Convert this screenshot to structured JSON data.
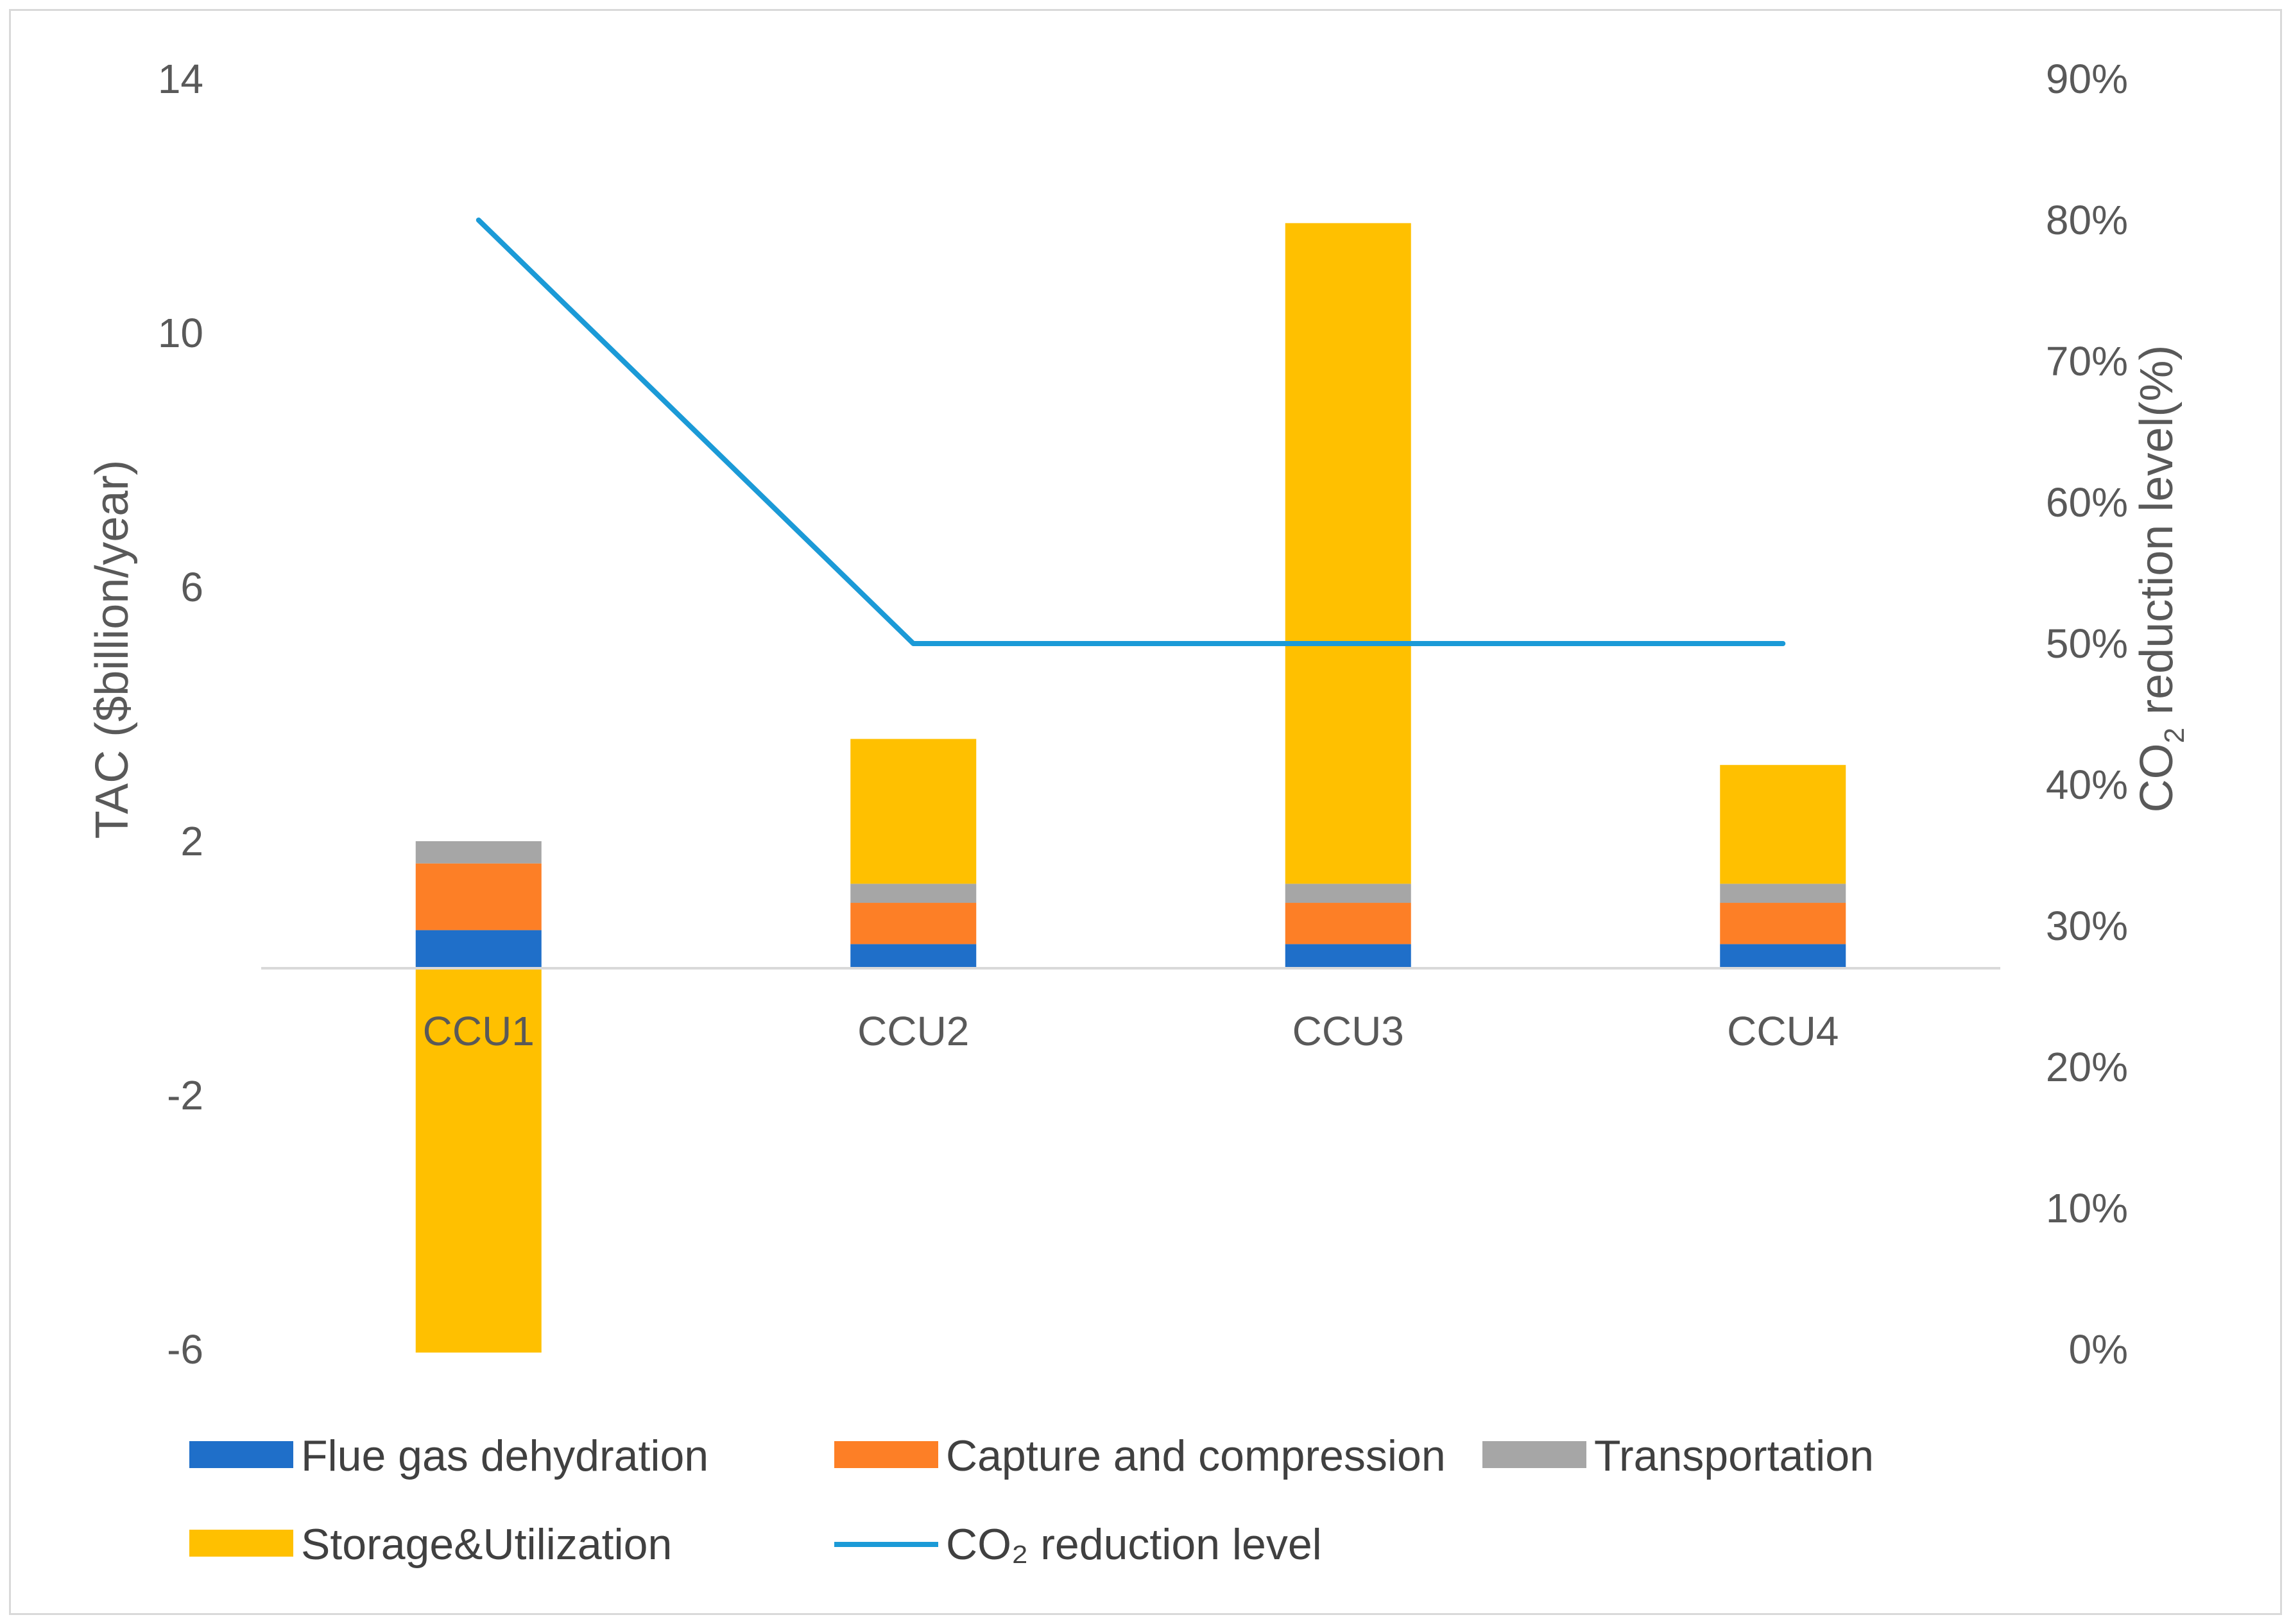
{
  "chart_data": {
    "type": "bar",
    "stacked": true,
    "categories": [
      "CCU1",
      "CCU2",
      "CCU3",
      "CCU4"
    ],
    "series": [
      {
        "name": "Flue gas dehydration",
        "kind": "bar",
        "color": "#1f6fc9",
        "values": [
          0.6,
          0.38,
          0.38,
          0.38
        ]
      },
      {
        "name": "Capture and compression",
        "kind": "bar",
        "color": "#fd7f26",
        "values": [
          1.05,
          0.65,
          0.65,
          0.65
        ]
      },
      {
        "name": "Transportation",
        "kind": "bar",
        "color": "#a6a6a6",
        "values": [
          0.35,
          0.3,
          0.3,
          0.3
        ]
      },
      {
        "name": "Storage&Utilization",
        "kind": "bar",
        "color": "#ffc000",
        "values": [
          -6.05,
          2.28,
          10.4,
          1.87
        ]
      }
    ],
    "line_series": {
      "name": "CO₂ reduction level",
      "color": "#1b9ad7",
      "axis": "right",
      "values": [
        80,
        50,
        50,
        50
      ]
    },
    "left_axis": {
      "label": "TAC ($billion/year)",
      "ticks": [
        "14",
        "10",
        "6",
        "2",
        "-2",
        "-6"
      ],
      "tick_values": [
        14,
        10,
        6,
        2,
        -2,
        -6
      ],
      "ylim": [
        -6,
        14
      ]
    },
    "right_axis": {
      "label_parts": {
        "pre": "CO",
        "sub": "2",
        "post": " reduction level(%)"
      },
      "ticks": [
        "90%",
        "80%",
        "70%",
        "60%",
        "50%",
        "40%",
        "30%",
        "20%",
        "10%",
        "0%"
      ],
      "tick_values": [
        90,
        80,
        70,
        60,
        50,
        40,
        30,
        20,
        10,
        0
      ],
      "ylim": [
        0,
        90
      ]
    },
    "legend_position": "bottom",
    "grid": false
  }
}
